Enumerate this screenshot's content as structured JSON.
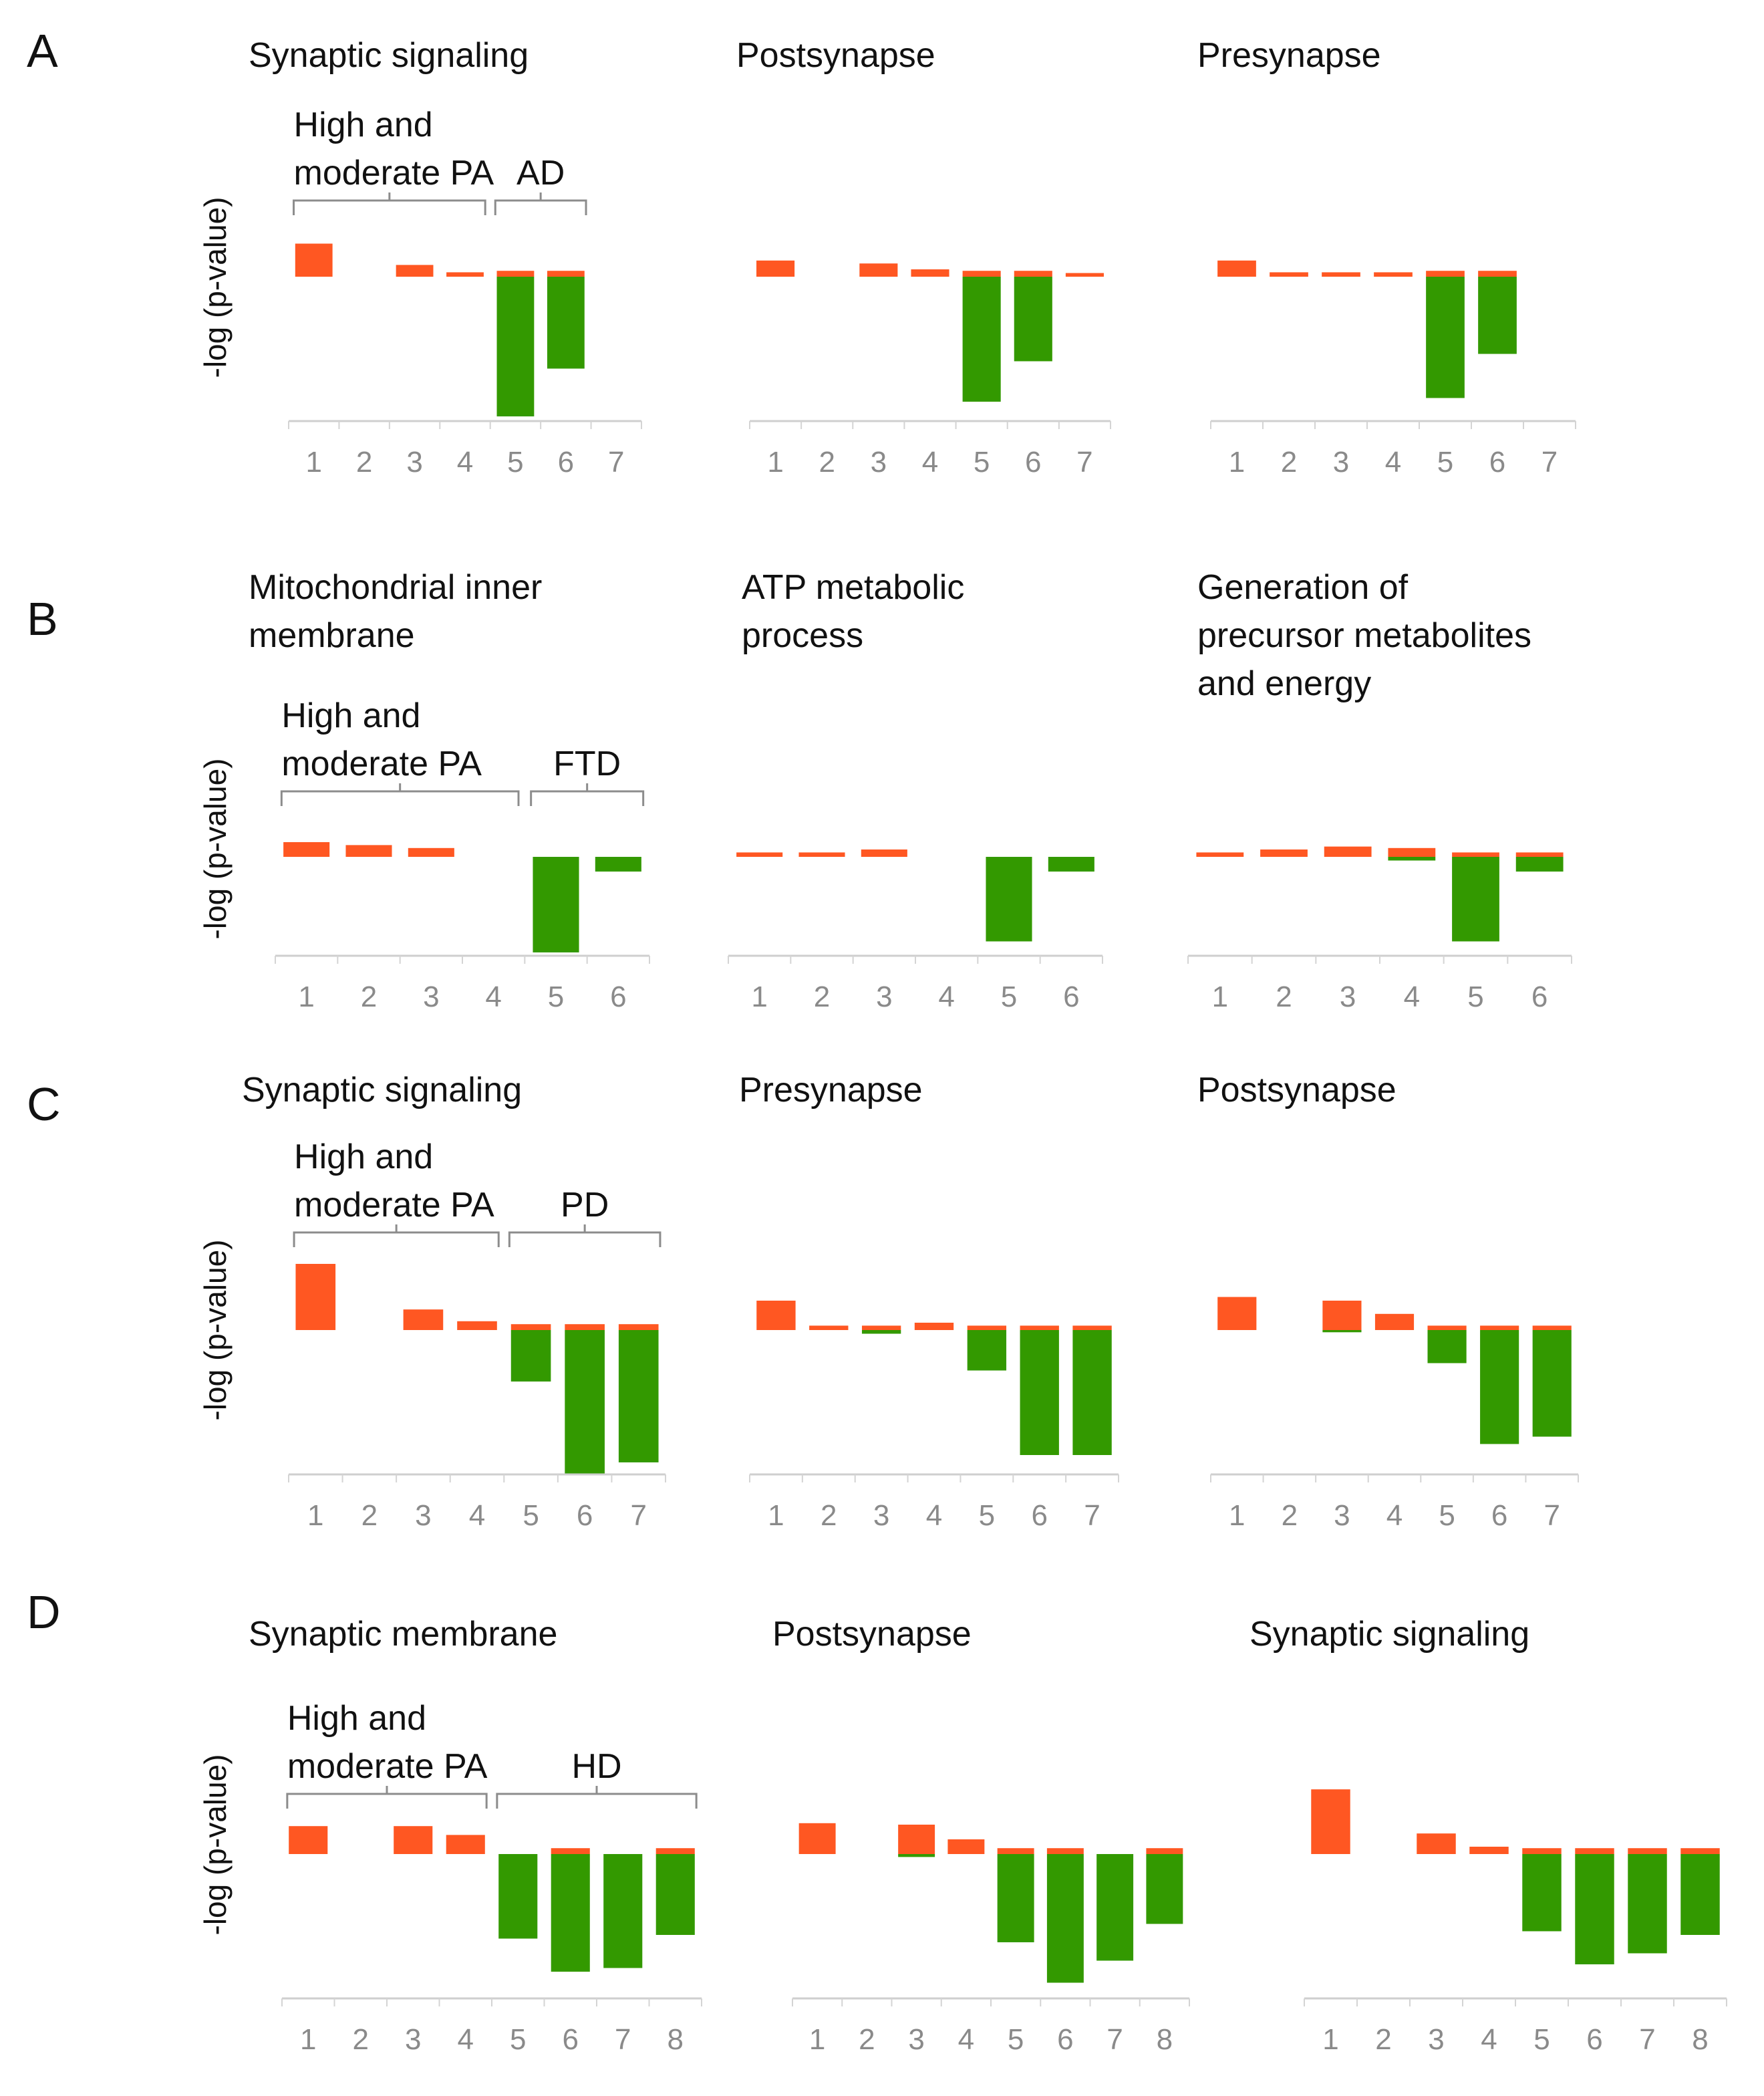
{
  "colors": {
    "positive": "#ff5722",
    "negative": "#339900",
    "axis": "#cfcfcf",
    "tick_text": "#8a8a8a"
  },
  "panels": [
    {
      "letter": "A",
      "ylabel": "-log (p-value)",
      "groups": [
        {
          "label_lines": [
            "High and",
            "moderate  PA"
          ],
          "from": 1,
          "to": 4
        },
        {
          "label_lines": [
            "AD"
          ],
          "from": 5,
          "to": 6
        }
      ],
      "charts": [
        {
          "title_lines": [
            "Synaptic signaling"
          ],
          "categories": [
            "1",
            "2",
            "3",
            "4",
            "5",
            "6",
            "7"
          ],
          "up": [
            0.45,
            0,
            0.16,
            0.06,
            0.08,
            0.08,
            0
          ],
          "down": [
            0,
            0,
            0,
            0,
            1.9,
            1.25,
            0
          ]
        },
        {
          "title_lines": [
            "Postsynapse"
          ],
          "categories": [
            "1",
            "2",
            "3",
            "4",
            "5",
            "6",
            "7"
          ],
          "up": [
            0.22,
            0,
            0.18,
            0.1,
            0.08,
            0.08,
            0.05
          ],
          "down": [
            0,
            0,
            0,
            0,
            1.7,
            1.15,
            0
          ]
        },
        {
          "title_lines": [
            "Presynapse"
          ],
          "categories": [
            "1",
            "2",
            "3",
            "4",
            "5",
            "6",
            "7"
          ],
          "up": [
            0.22,
            0.06,
            0.06,
            0.06,
            0.08,
            0.08,
            0
          ],
          "down": [
            0,
            0,
            0,
            0,
            1.65,
            1.05,
            0
          ]
        }
      ]
    },
    {
      "letter": "B",
      "ylabel": "-log (p-value)",
      "groups": [
        {
          "label_lines": [
            "High and",
            "moderate  PA"
          ],
          "from": 1,
          "to": 4
        },
        {
          "label_lines": [
            "FTD"
          ],
          "from": 5,
          "to": 6
        }
      ],
      "charts": [
        {
          "title_lines": [
            "Mitochondrial  inner",
            "membrane"
          ],
          "categories": [
            "1",
            "2",
            "3",
            "4",
            "5",
            "6"
          ],
          "up": [
            0.2,
            0.16,
            0.12,
            0,
            0,
            0
          ],
          "down": [
            0,
            0,
            0,
            0,
            1.3,
            0.2
          ]
        },
        {
          "title_lines": [
            "ATP  metabolic",
            "process"
          ],
          "categories": [
            "1",
            "2",
            "3",
            "4",
            "5",
            "6"
          ],
          "up": [
            0.06,
            0.06,
            0.1,
            0,
            0,
            0
          ],
          "down": [
            0,
            0,
            0,
            0,
            1.15,
            0.2
          ]
        },
        {
          "title_lines": [
            "Generation  of",
            "precursor  metabolites",
            "and energy"
          ],
          "categories": [
            "1",
            "2",
            "3",
            "4",
            "5",
            "6"
          ],
          "up": [
            0.06,
            0.1,
            0.14,
            0.12,
            0.06,
            0.06
          ],
          "down": [
            0,
            0,
            0,
            0.05,
            1.15,
            0.2
          ]
        }
      ]
    },
    {
      "letter": "C",
      "ylabel": "-log (p-value)",
      "groups": [
        {
          "label_lines": [
            "High and",
            "moderate  PA"
          ],
          "from": 1,
          "to": 4
        },
        {
          "label_lines": [
            "PD"
          ],
          "from": 5,
          "to": 7
        }
      ],
      "charts": [
        {
          "title_lines": [
            "Synaptic signaling"
          ],
          "categories": [
            "1",
            "2",
            "3",
            "4",
            "5",
            "6",
            "7"
          ],
          "up": [
            0.9,
            0,
            0.28,
            0.12,
            0.08,
            0.08,
            0.08
          ],
          "down": [
            0,
            0,
            0,
            0,
            0.7,
            1.95,
            1.8
          ]
        },
        {
          "title_lines": [
            "Presynapse"
          ],
          "categories": [
            "1",
            "2",
            "3",
            "4",
            "5",
            "6",
            "7"
          ],
          "up": [
            0.4,
            0.06,
            0.06,
            0.1,
            0.06,
            0.06,
            0.06
          ],
          "down": [
            0,
            0,
            0.05,
            0,
            0.55,
            1.7,
            1.7
          ]
        },
        {
          "title_lines": [
            "Postsynapse"
          ],
          "categories": [
            "1",
            "2",
            "3",
            "4",
            "5",
            "6",
            "7"
          ],
          "up": [
            0.45,
            0,
            0.4,
            0.22,
            0.06,
            0.06,
            0.06
          ],
          "down": [
            0,
            0,
            0.03,
            0,
            0.45,
            1.55,
            1.45
          ]
        }
      ]
    },
    {
      "letter": "D",
      "ylabel": "-log (p-value)",
      "groups": [
        {
          "label_lines": [
            "High and",
            "moderate  PA"
          ],
          "from": 1,
          "to": 4
        },
        {
          "label_lines": [
            "HD"
          ],
          "from": 5,
          "to": 8
        }
      ],
      "charts": [
        {
          "title_lines": [
            "Synaptic membrane"
          ],
          "categories": [
            "1",
            "2",
            "3",
            "4",
            "5",
            "6",
            "7",
            "8"
          ],
          "up": [
            0.38,
            0,
            0.38,
            0.26,
            0,
            0.08,
            0,
            0.08
          ],
          "down": [
            0,
            0,
            0,
            0,
            1.15,
            1.6,
            1.55,
            1.1
          ]
        },
        {
          "title_lines": [
            "Postsynapse"
          ],
          "categories": [
            "1",
            "2",
            "3",
            "4",
            "5",
            "6",
            "7",
            "8"
          ],
          "up": [
            0.42,
            0,
            0.4,
            0.2,
            0.08,
            0.08,
            0,
            0.08
          ],
          "down": [
            0,
            0,
            0.04,
            0,
            1.2,
            1.75,
            1.45,
            0.95
          ]
        },
        {
          "title_lines": [
            "Synaptic signaling"
          ],
          "categories": [
            "1",
            "2",
            "3",
            "4",
            "5",
            "6",
            "7",
            "8"
          ],
          "up": [
            0.88,
            0,
            0.28,
            0.1,
            0.08,
            0.08,
            0.08,
            0.08
          ],
          "down": [
            0,
            0,
            0,
            0,
            1.05,
            1.5,
            1.35,
            1.1
          ]
        }
      ]
    }
  ],
  "chart_data": [
    {
      "type": "bar",
      "title": "Synaptic signaling",
      "ylabel": "-log (p-value)",
      "categories": [
        "1",
        "2",
        "3",
        "4",
        "5",
        "6",
        "7"
      ],
      "series": [
        {
          "values": [
            0.45,
            0,
            0.16,
            0.06,
            0.08,
            0.08,
            0
          ]
        },
        {
          "values": [
            0,
            0,
            0,
            0,
            -1.9,
            -1.25,
            0
          ]
        }
      ]
    },
    {
      "type": "bar",
      "title": "Postsynapse",
      "ylabel": "-log (p-value)",
      "categories": [
        "1",
        "2",
        "3",
        "4",
        "5",
        "6",
        "7"
      ],
      "series": [
        {
          "values": [
            0.22,
            0,
            0.18,
            0.1,
            0.08,
            0.08,
            0.05
          ]
        },
        {
          "values": [
            0,
            0,
            0,
            0,
            -1.7,
            -1.15,
            0
          ]
        }
      ]
    },
    {
      "type": "bar",
      "title": "Presynapse",
      "ylabel": "-log (p-value)",
      "categories": [
        "1",
        "2",
        "3",
        "4",
        "5",
        "6",
        "7"
      ],
      "series": [
        {
          "values": [
            0.22,
            0.06,
            0.06,
            0.06,
            0.08,
            0.08,
            0
          ]
        },
        {
          "values": [
            0,
            0,
            0,
            0,
            -1.65,
            -1.05,
            0
          ]
        }
      ]
    },
    {
      "type": "bar",
      "title": "Mitochondrial inner membrane",
      "ylabel": "-log (p-value)",
      "categories": [
        "1",
        "2",
        "3",
        "4",
        "5",
        "6"
      ],
      "series": [
        {
          "values": [
            0.2,
            0.16,
            0.12,
            0,
            0,
            0
          ]
        },
        {
          "values": [
            0,
            0,
            0,
            0,
            -1.3,
            -0.2
          ]
        }
      ]
    },
    {
      "type": "bar",
      "title": "ATP metabolic process",
      "ylabel": "-log (p-value)",
      "categories": [
        "1",
        "2",
        "3",
        "4",
        "5",
        "6"
      ],
      "series": [
        {
          "values": [
            0.06,
            0.06,
            0.1,
            0,
            0,
            0
          ]
        },
        {
          "values": [
            0,
            0,
            0,
            0,
            -1.15,
            -0.2
          ]
        }
      ]
    },
    {
      "type": "bar",
      "title": "Generation of precursor metabolites and energy",
      "ylabel": "-log (p-value)",
      "categories": [
        "1",
        "2",
        "3",
        "4",
        "5",
        "6"
      ],
      "series": [
        {
          "values": [
            0.06,
            0.1,
            0.14,
            0.12,
            0.06,
            0.06
          ]
        },
        {
          "values": [
            0,
            0,
            0,
            -0.05,
            -1.15,
            -0.2
          ]
        }
      ]
    },
    {
      "type": "bar",
      "title": "Synaptic signaling",
      "ylabel": "-log (p-value)",
      "categories": [
        "1",
        "2",
        "3",
        "4",
        "5",
        "6",
        "7"
      ],
      "series": [
        {
          "values": [
            0.9,
            0,
            0.28,
            0.12,
            0.08,
            0.08,
            0.08
          ]
        },
        {
          "values": [
            0,
            0,
            0,
            0,
            -0.7,
            -1.95,
            -1.8
          ]
        }
      ]
    },
    {
      "type": "bar",
      "title": "Presynapse",
      "ylabel": "-log (p-value)",
      "categories": [
        "1",
        "2",
        "3",
        "4",
        "5",
        "6",
        "7"
      ],
      "series": [
        {
          "values": [
            0.4,
            0.06,
            0.06,
            0.1,
            0.06,
            0.06,
            0.06
          ]
        },
        {
          "values": [
            0,
            0,
            -0.05,
            0,
            -0.55,
            -1.7,
            -1.7
          ]
        }
      ]
    },
    {
      "type": "bar",
      "title": "Postsynapse",
      "ylabel": "-log (p-value)",
      "categories": [
        "1",
        "2",
        "3",
        "4",
        "5",
        "6",
        "7"
      ],
      "series": [
        {
          "values": [
            0.45,
            0,
            0.4,
            0.22,
            0.06,
            0.06,
            0.06
          ]
        },
        {
          "values": [
            0,
            0,
            -0.03,
            0,
            -0.45,
            -1.55,
            -1.45
          ]
        }
      ]
    },
    {
      "type": "bar",
      "title": "Synaptic membrane",
      "ylabel": "-log (p-value)",
      "categories": [
        "1",
        "2",
        "3",
        "4",
        "5",
        "6",
        "7",
        "8"
      ],
      "series": [
        {
          "values": [
            0.38,
            0,
            0.38,
            0.26,
            0,
            0.08,
            0,
            0.08
          ]
        },
        {
          "values": [
            0,
            0,
            0,
            0,
            -1.15,
            -1.6,
            -1.55,
            -1.1
          ]
        }
      ]
    },
    {
      "type": "bar",
      "title": "Postsynapse",
      "ylabel": "-log (p-value)",
      "categories": [
        "1",
        "2",
        "3",
        "4",
        "5",
        "6",
        "7",
        "8"
      ],
      "series": [
        {
          "values": [
            0.42,
            0,
            0.4,
            0.2,
            0.08,
            0.08,
            0,
            0.08
          ]
        },
        {
          "values": [
            0,
            0,
            -0.04,
            0,
            -1.2,
            -1.75,
            -1.45,
            -0.95
          ]
        }
      ]
    },
    {
      "type": "bar",
      "title": "Synaptic signaling",
      "ylabel": "-log (p-value)",
      "categories": [
        "1",
        "2",
        "3",
        "4",
        "5",
        "6",
        "7",
        "8"
      ],
      "series": [
        {
          "values": [
            0.88,
            0,
            0.28,
            0.1,
            0.08,
            0.08,
            0.08,
            0.08
          ]
        },
        {
          "values": [
            0,
            0,
            0,
            0,
            -1.05,
            -1.5,
            -1.35,
            -1.1
          ]
        }
      ]
    }
  ]
}
